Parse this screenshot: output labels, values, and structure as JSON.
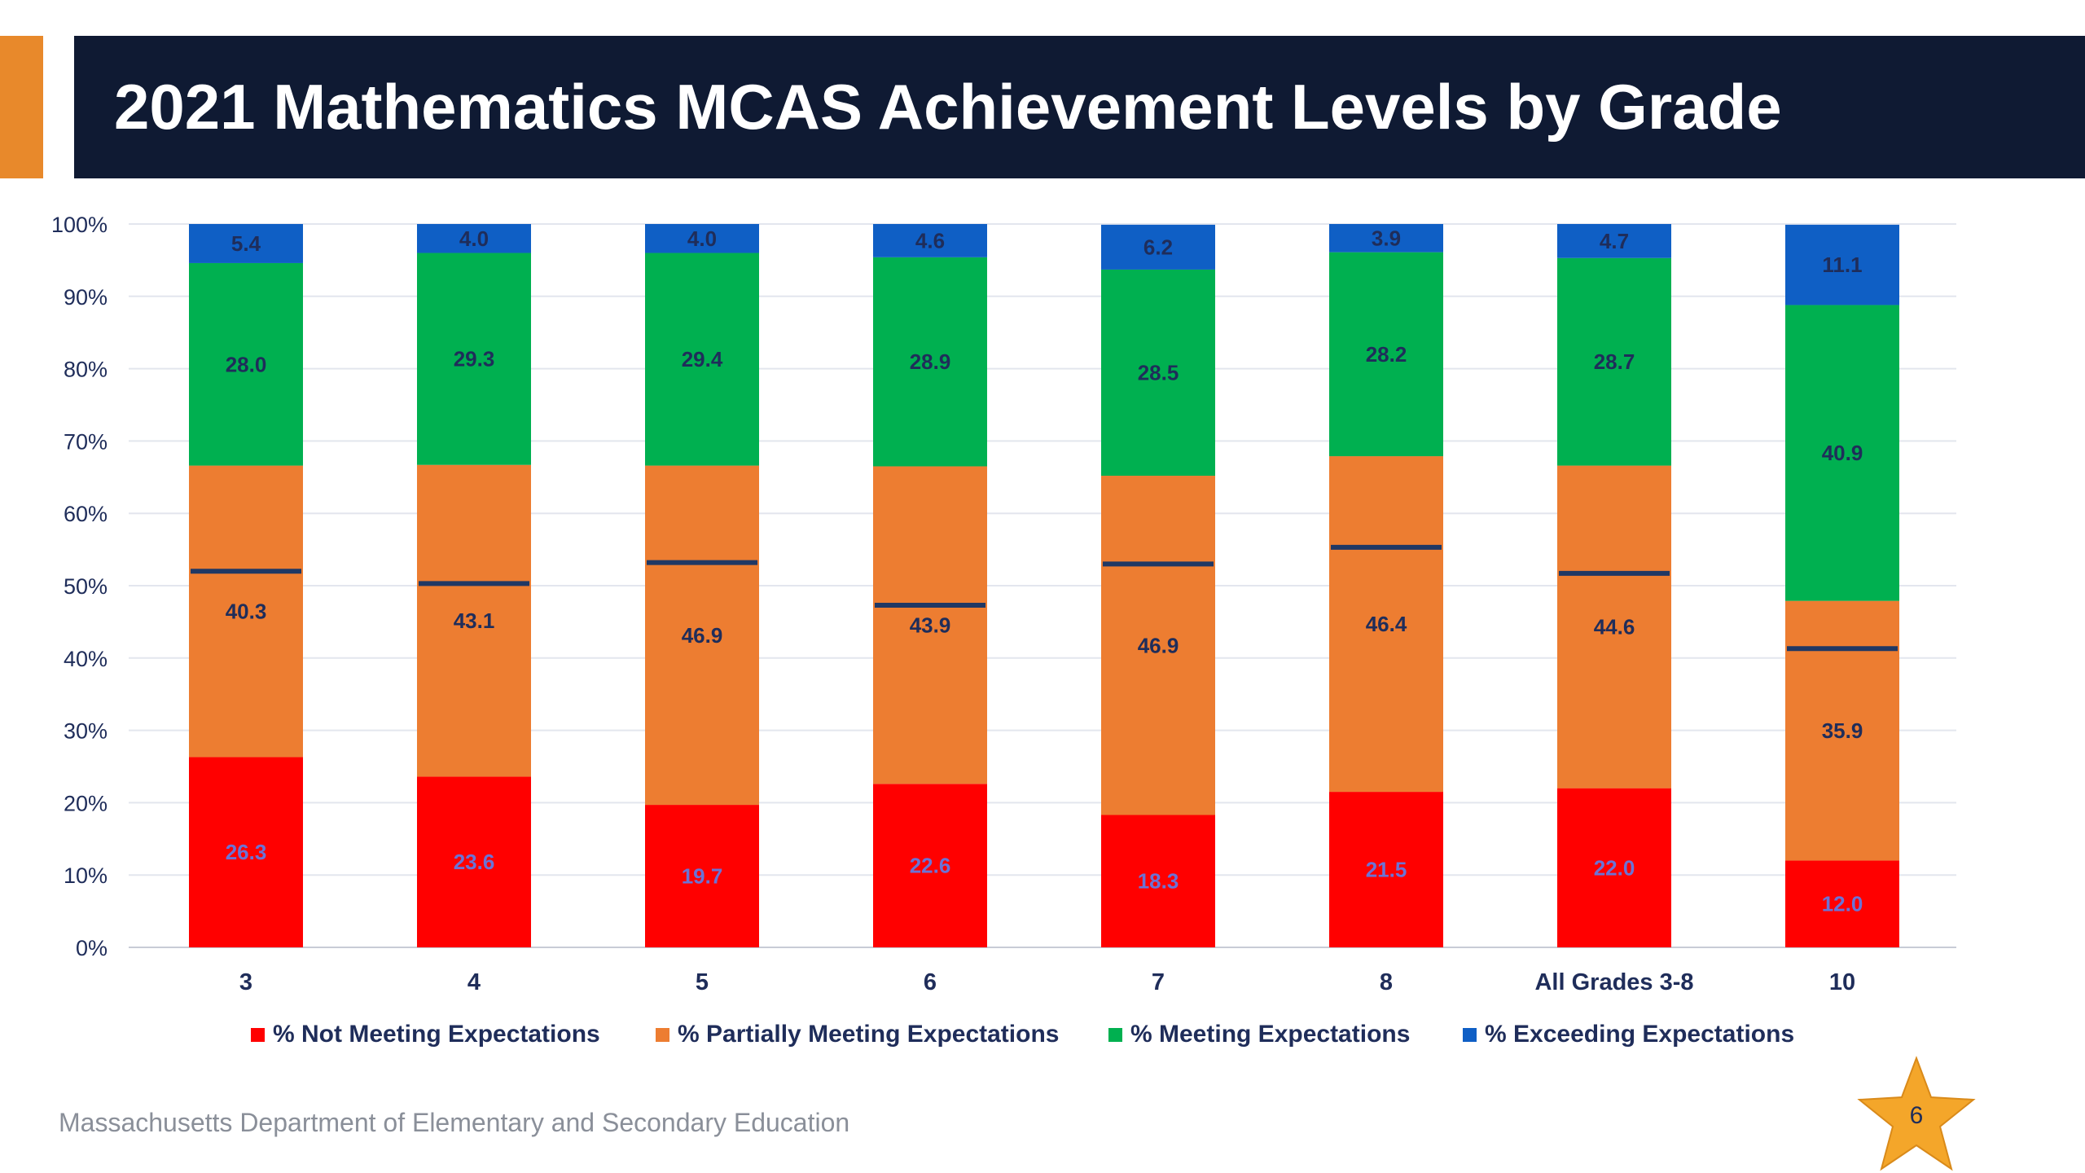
{
  "slide": {
    "title": "2021 Mathematics MCAS Achievement Levels by Grade",
    "footer": "Massachusetts Department of Elementary and Secondary Education",
    "page_number": "6",
    "colors": {
      "banner": "#0f1a33",
      "accent": "#e8892b",
      "star": "#f4a62a"
    }
  },
  "legend": {
    "items": [
      {
        "label": "% Not Meeting Expectations",
        "color": "#ff0000"
      },
      {
        "label": "% Partially Meeting Expectations",
        "color": "#ed7d31"
      },
      {
        "label": "% Meeting Expectations",
        "color": "#00b050"
      },
      {
        "label": "% Exceeding Expectations",
        "color": "#0f5fc5"
      }
    ]
  },
  "chart_data": {
    "type": "bar",
    "stacked": true,
    "title": "2021 Mathematics MCAS Achievement Levels by Grade",
    "categories": [
      "3",
      "4",
      "5",
      "6",
      "7",
      "8",
      "All Grades 3-8",
      "10"
    ],
    "ylim": [
      0,
      100
    ],
    "yticks": [
      "0%",
      "10%",
      "20%",
      "30%",
      "40%",
      "50%",
      "60%",
      "70%",
      "80%",
      "90%",
      "100%"
    ],
    "grid": true,
    "legend_position": "bottom",
    "series": [
      {
        "name": "% Not Meeting Expectations",
        "color": "#ff0000",
        "label_color": "#6b73d6",
        "values": [
          26.3,
          23.6,
          19.7,
          22.6,
          18.3,
          21.5,
          22.0,
          12.0
        ]
      },
      {
        "name": "% Partially Meeting Expectations",
        "color": "#ed7d31",
        "label_color": "#1f2d5a",
        "values": [
          40.3,
          43.1,
          46.9,
          43.9,
          46.9,
          46.4,
          44.6,
          35.9
        ]
      },
      {
        "name": "% Meeting Expectations",
        "color": "#00b050",
        "label_color": "#1f2d5a",
        "values": [
          28.0,
          29.3,
          29.4,
          28.9,
          28.5,
          28.2,
          28.7,
          40.9
        ]
      },
      {
        "name": "% Exceeding Expectations",
        "color": "#0f5fc5",
        "label_color": "#1f2d5a",
        "values": [
          5.4,
          4.0,
          4.0,
          4.6,
          6.2,
          3.9,
          4.7,
          11.1
        ]
      }
    ],
    "markers": {
      "color": "#203864",
      "values": [
        52,
        50.3,
        53.2,
        47.3,
        53,
        55.3,
        51.7,
        41.3
      ]
    }
  }
}
